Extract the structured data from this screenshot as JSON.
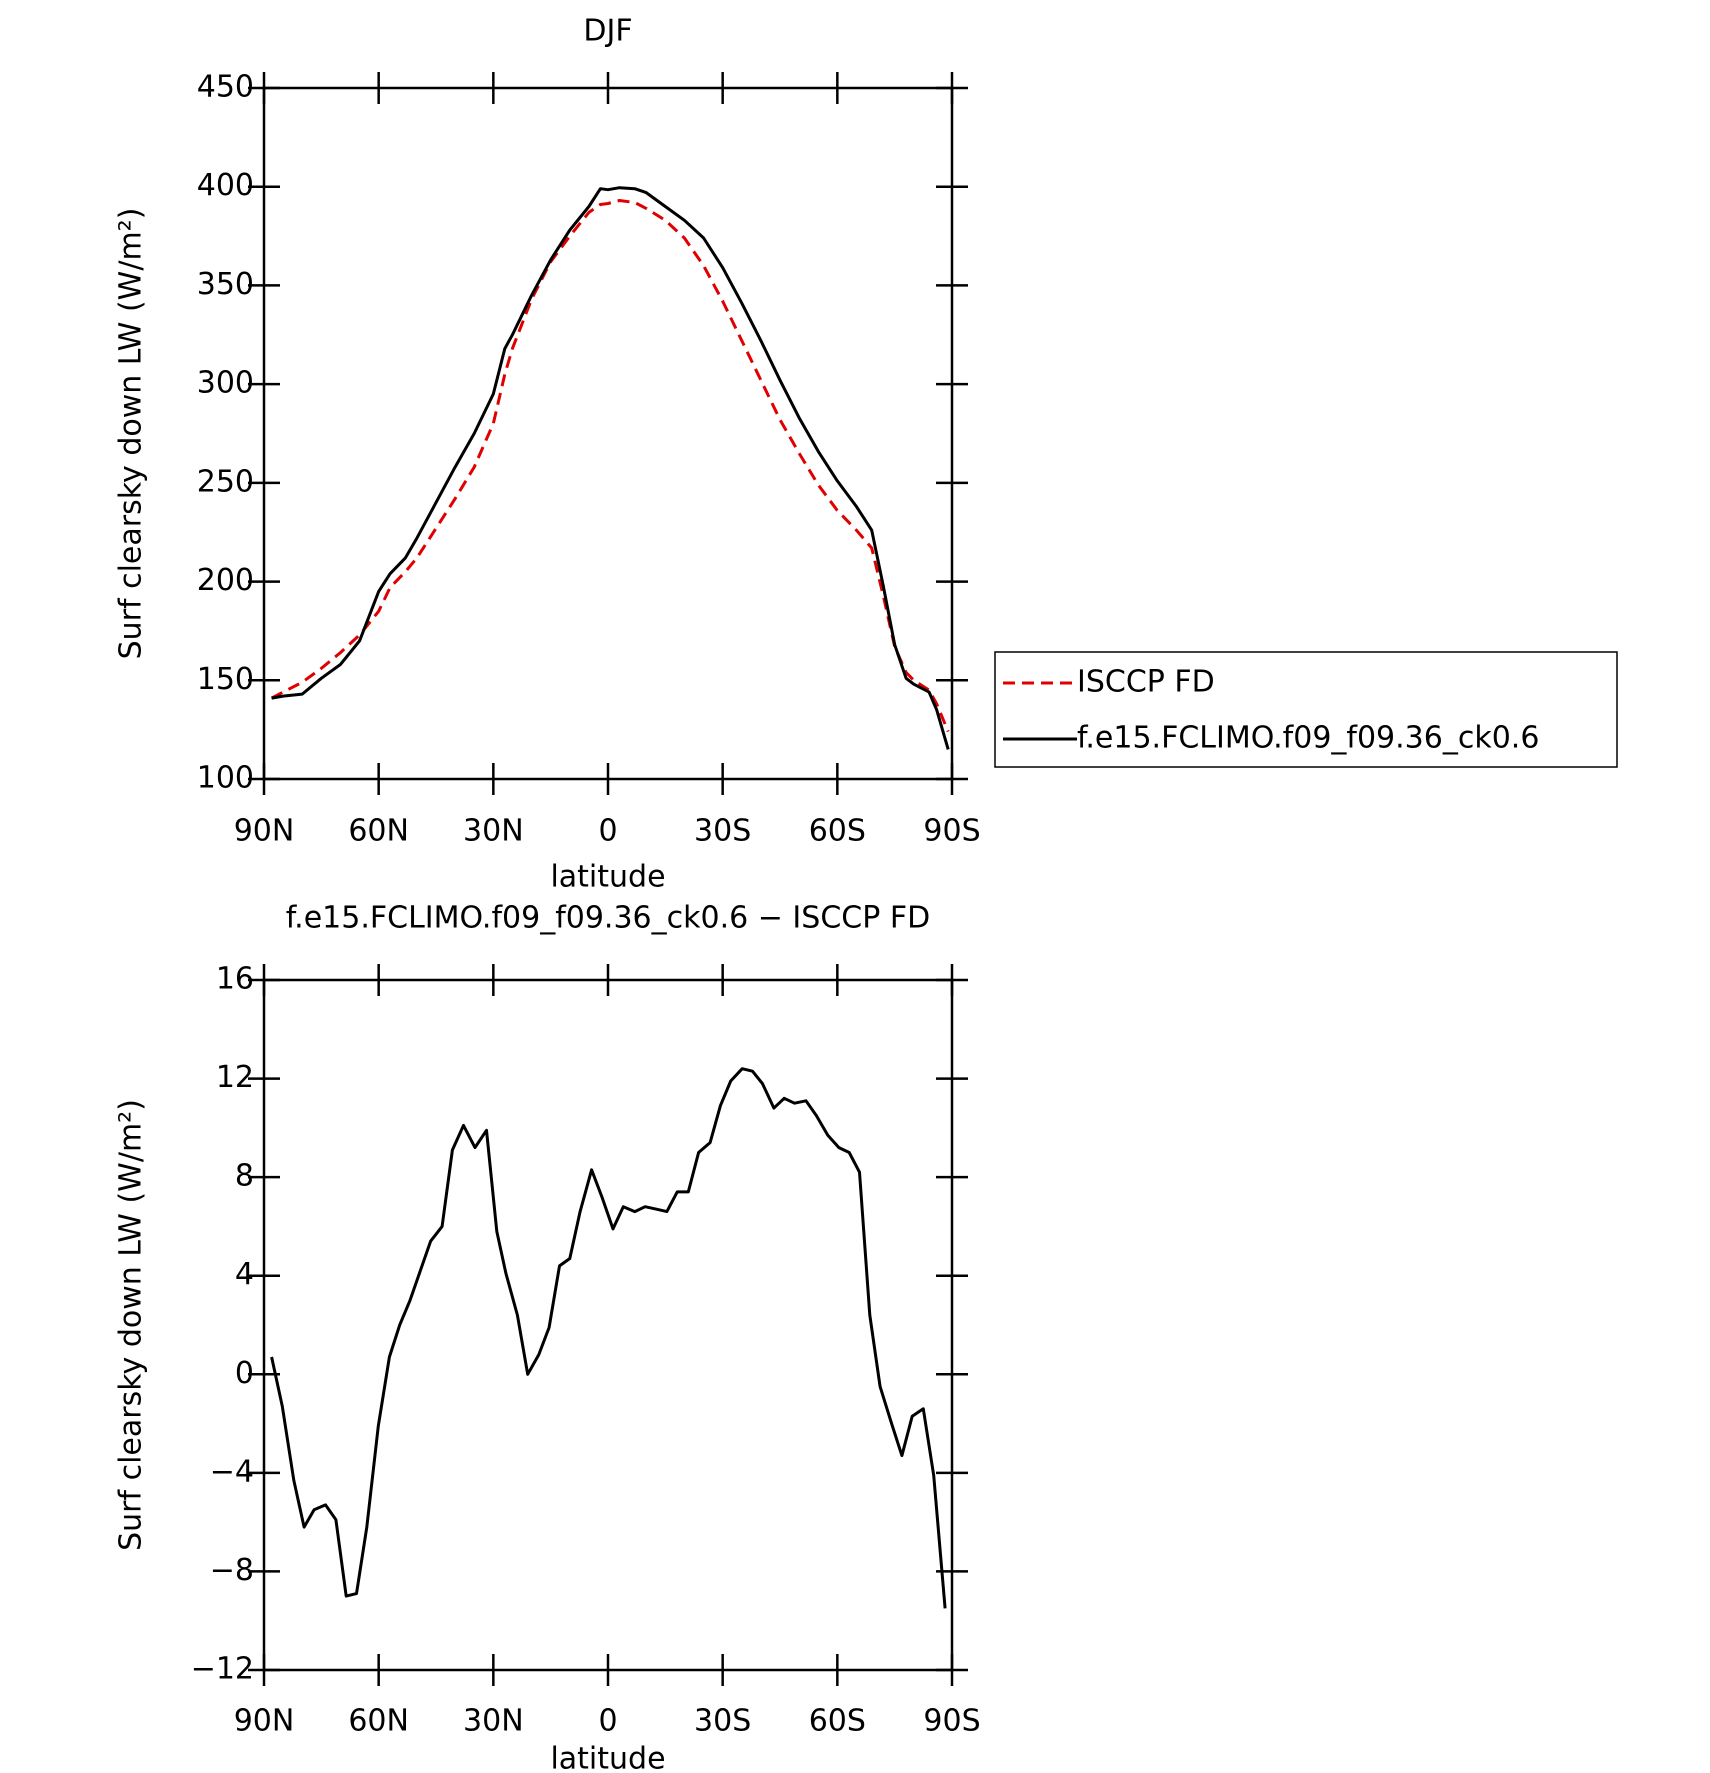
{
  "chart_data": [
    {
      "type": "line",
      "title": "DJF",
      "x_label": "latitude",
      "y_label": "Surf clearsky down LW (W/m²)",
      "x": [
        88,
        85,
        80,
        75,
        70,
        65,
        60,
        57,
        53,
        50,
        45,
        40,
        35,
        30,
        27,
        25,
        20,
        15,
        10,
        5,
        2,
        0,
        -3,
        -7,
        -10,
        -15,
        -20,
        -25,
        -30,
        -35,
        -40,
        -45,
        -50,
        -55,
        -60,
        -65,
        -69,
        -72,
        -75,
        -78,
        -80,
        -84,
        -86,
        -89
      ],
      "series": [
        {
          "name": "ISCCP FD",
          "color": "#e00000",
          "dashed": true,
          "values": [
            141,
            144,
            149,
            156,
            164,
            173,
            185,
            197,
            205,
            212,
            227,
            242,
            258,
            280,
            305,
            318,
            343,
            362,
            375,
            387,
            391,
            391.5,
            393,
            392,
            389,
            383,
            374,
            360,
            342,
            322,
            302,
            282,
            265,
            249,
            236,
            226,
            217,
            193,
            167,
            154,
            150,
            145,
            138,
            124
          ]
        },
        {
          "name": "f.e15.FCLIMO.f09_f09.36_ck0.6",
          "color": "#000000",
          "dashed": false,
          "values": [
            141,
            142,
            143,
            151,
            158,
            170,
            195,
            204,
            212,
            222,
            240,
            258,
            275,
            295,
            318,
            325,
            345,
            363,
            378,
            390,
            399,
            398.5,
            399.5,
            399,
            397,
            390,
            383,
            374,
            359,
            341,
            322,
            302,
            283,
            266,
            251,
            238,
            226,
            198,
            168,
            151,
            148,
            144,
            135,
            115
          ]
        }
      ],
      "xlim": [
        90,
        -90
      ],
      "xticks": [
        {
          "value": 90,
          "label": "90N"
        },
        {
          "value": 60,
          "label": "60N"
        },
        {
          "value": 30,
          "label": "30N"
        },
        0,
        {
          "value": -30,
          "label": "30S"
        },
        {
          "value": -60,
          "label": "60S"
        },
        {
          "value": -90,
          "label": "90S"
        }
      ],
      "ylim": [
        100,
        450
      ],
      "yticks": [
        100,
        150,
        200,
        250,
        300,
        350,
        400,
        450
      ],
      "legend": "right"
    },
    {
      "type": "line",
      "title": "f.e15.FCLIMO.f09_f09.36_ck0.6 − ISCCP FD",
      "x_label": "latitude",
      "y_label": "Surf clearsky down LW (W/m²)",
      "x": [
        88,
        85.2,
        82.2,
        79.5,
        76.9,
        73.9,
        71.2,
        68.5,
        65.8,
        63.1,
        60.1,
        57.2,
        54.5,
        51.8,
        46.4,
        43.4,
        40.7,
        37.8,
        34.8,
        31.8,
        29.1,
        26.7,
        23.7,
        21.0,
        18.1,
        15.4,
        12.7,
        10.0,
        7.3,
        4.3,
        1.6,
        -1.3,
        -4.0,
        -7.0,
        -9.7,
        -12.7,
        -15.4,
        -18.1,
        -21.0,
        -23.7,
        -26.7,
        -29.4,
        -32.1,
        -35.1,
        -37.8,
        -40.4,
        -43.4,
        -46.1,
        -48.8,
        -51.8,
        -54.5,
        -57.5,
        -60.4,
        -63.1,
        -65.8,
        -68.5,
        -71.2,
        -74.2,
        -76.9,
        -79.6,
        -82.5,
        -85.2,
        -88.2
      ],
      "values": [
        0.7,
        -1.3,
        -4.3,
        -6.2,
        -5.5,
        -5.3,
        -5.9,
        -9.0,
        -8.9,
        -6.2,
        -2.1,
        0.7,
        2.0,
        3.0,
        5.4,
        6.0,
        9.1,
        10.1,
        9.2,
        9.9,
        5.8,
        4.1,
        2.4,
        0.0,
        0.8,
        1.9,
        4.4,
        4.7,
        6.6,
        8.3,
        7.2,
        5.9,
        6.8,
        6.6,
        6.8,
        6.7,
        6.6,
        7.4,
        7.4,
        9.0,
        9.4,
        10.9,
        11.9,
        12.4,
        12.3,
        11.8,
        10.8,
        11.2,
        11.0,
        11.1,
        10.5,
        9.7,
        9.2,
        9.0,
        8.2,
        2.4,
        -0.5,
        -2.0,
        -3.3,
        -1.7,
        -1.4,
        -4.1,
        -9.5
      ],
      "color": "#000000",
      "xlim": [
        90,
        -90
      ],
      "xticks": [
        {
          "value": 90,
          "label": "90N"
        },
        {
          "value": 60,
          "label": "60N"
        },
        {
          "value": 30,
          "label": "30N"
        },
        0,
        {
          "value": -30,
          "label": "30S"
        },
        {
          "value": -60,
          "label": "60S"
        },
        {
          "value": -90,
          "label": "90S"
        }
      ],
      "ylim": [
        -12,
        16
      ],
      "yticks": [
        {
          "value": -12,
          "label": "−12"
        },
        {
          "value": -8,
          "label": "−8"
        },
        {
          "value": -4,
          "label": "−4"
        },
        0,
        4,
        8,
        12,
        16
      ]
    }
  ]
}
